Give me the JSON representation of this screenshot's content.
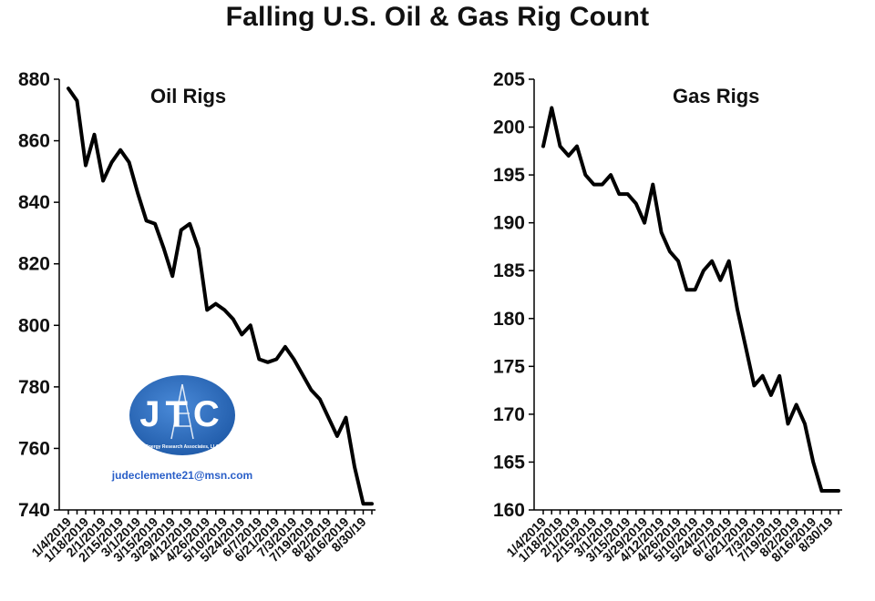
{
  "title": "Falling U.S. Oil & Gas Rig Count",
  "logo": {
    "initials": "JTC",
    "company": "Energy Research Associates, LLC",
    "email": "judeclemente21@msn.com",
    "color": "#2f6fbf"
  },
  "chart_data": [
    {
      "type": "line",
      "label": "Oil Rigs",
      "ylim": [
        740,
        880
      ],
      "yticks": [
        740,
        760,
        780,
        800,
        820,
        840,
        860,
        880
      ],
      "grid": false,
      "x": [
        "1/4/2019",
        "1/11/2019",
        "1/18/2019",
        "1/25/2019",
        "2/1/2019",
        "2/8/2019",
        "2/15/2019",
        "2/22/2019",
        "3/1/2019",
        "3/8/2019",
        "3/15/2019",
        "3/22/2019",
        "3/29/2019",
        "4/5/2019",
        "4/12/2019",
        "4/19/2019",
        "4/26/2019",
        "5/3/2019",
        "5/10/2019",
        "5/17/2019",
        "5/24/2019",
        "5/31/2019",
        "6/7/2019",
        "6/14/2019",
        "6/21/2019",
        "6/28/2019",
        "7/3/2019",
        "7/12/2019",
        "7/19/2019",
        "7/26/2019",
        "8/2/2019",
        "8/9/2019",
        "8/16/2019",
        "8/23/2019",
        "8/30/19",
        "9/6/19"
      ],
      "xtick_labels": [
        "1/4/2019",
        "1/18/2019",
        "2/1/2019",
        "2/15/2019",
        "3/1/2019",
        "3/15/2019",
        "3/29/2019",
        "4/12/2019",
        "4/26/2019",
        "5/10/2019",
        "5/24/2019",
        "6/7/2019",
        "6/21/2019",
        "7/3/2019",
        "7/19/2019",
        "8/2/2019",
        "8/16/2019",
        "8/30/19"
      ],
      "values": [
        877,
        873,
        852,
        862,
        847,
        853,
        857,
        853,
        843,
        834,
        833,
        825,
        816,
        831,
        833,
        825,
        805,
        807,
        805,
        802,
        797,
        800,
        789,
        788,
        789,
        793,
        789,
        784,
        779,
        776,
        770,
        764,
        770,
        754,
        742,
        742
      ]
    },
    {
      "type": "line",
      "label": "Gas Rigs",
      "ylim": [
        160,
        205
      ],
      "yticks": [
        160,
        165,
        170,
        175,
        180,
        185,
        190,
        195,
        200,
        205
      ],
      "grid": false,
      "x": [
        "1/4/2019",
        "1/11/2019",
        "1/18/2019",
        "1/25/2019",
        "2/1/2019",
        "2/8/2019",
        "2/15/2019",
        "2/22/2019",
        "3/1/2019",
        "3/8/2019",
        "3/15/2019",
        "3/22/2019",
        "3/29/2019",
        "4/5/2019",
        "4/12/2019",
        "4/19/2019",
        "4/26/2019",
        "5/3/2019",
        "5/10/2019",
        "5/17/2019",
        "5/24/2019",
        "5/31/2019",
        "6/7/2019",
        "6/14/2019",
        "6/21/2019",
        "6/28/2019",
        "7/3/2019",
        "7/12/2019",
        "7/19/2019",
        "7/26/2019",
        "8/2/2019",
        "8/9/2019",
        "8/16/2019",
        "8/23/2019",
        "8/30/19",
        "9/6/19"
      ],
      "xtick_labels": [
        "1/4/2019",
        "1/18/2019",
        "2/1/2019",
        "2/15/2019",
        "3/1/2019",
        "3/15/2019",
        "3/29/2019",
        "4/12/2019",
        "4/26/2019",
        "5/10/2019",
        "5/24/2019",
        "6/7/2019",
        "6/21/2019",
        "7/3/2019",
        "7/19/2019",
        "8/2/2019",
        "8/16/2019",
        "8/30/19"
      ],
      "values": [
        198,
        202,
        198,
        197,
        198,
        195,
        194,
        194,
        195,
        193,
        193,
        192,
        190,
        194,
        189,
        187,
        186,
        183,
        183,
        185,
        186,
        184,
        186,
        181,
        177,
        173,
        174,
        172,
        174,
        169,
        171,
        169,
        165,
        162,
        162,
        162
      ]
    }
  ]
}
